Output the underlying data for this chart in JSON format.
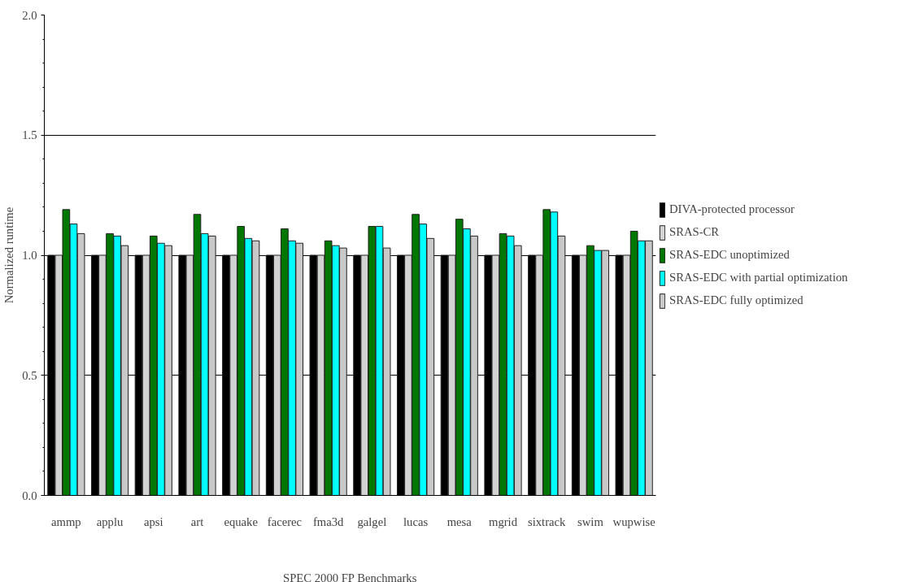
{
  "chart_data": {
    "type": "bar",
    "xlabel": "SPEC 2000 FP Benchmarks",
    "ylabel": "Normalized runtime",
    "categories": [
      "ammp",
      "applu",
      "apsi",
      "art",
      "equake",
      "facerec",
      "fma3d",
      "galgel",
      "lucas",
      "mesa",
      "mgrid",
      "sixtrack",
      "swim",
      "wupwise"
    ],
    "series": [
      {
        "name": "DIVA-protected processor",
        "color": "#000000",
        "values": [
          1,
          1,
          1,
          1,
          1,
          1,
          1,
          1,
          1,
          1,
          1,
          1,
          1,
          1
        ]
      },
      {
        "name": "SRAS-CR",
        "color": "#d3d3d3",
        "values": [
          1,
          1,
          1,
          1,
          1,
          1,
          1,
          1,
          1,
          1,
          1,
          1,
          1,
          1
        ]
      },
      {
        "name": "SRAS-EDC unoptimized",
        "color": "#007700",
        "values": [
          1.19,
          1.09,
          1.08,
          1.17,
          1.12,
          1.11,
          1.06,
          1.12,
          1.17,
          1.15,
          1.09,
          1.19,
          1.04,
          1.1
        ]
      },
      {
        "name": "SRAS-EDC with partial optimization",
        "color": "#00ffff",
        "values": [
          1.13,
          1.08,
          1.05,
          1.09,
          1.07,
          1.06,
          1.04,
          1.12,
          1.13,
          1.11,
          1.08,
          1.18,
          1.02,
          1.06
        ]
      },
      {
        "name": "SRAS-EDC fully optimized",
        "color": "#c8c8c8",
        "values": [
          1.09,
          1.04,
          1.04,
          1.08,
          1.06,
          1.05,
          1.03,
          1.03,
          1.07,
          1.08,
          1.04,
          1.08,
          1.02,
          1.06
        ]
      }
    ],
    "ylim": [
      0,
      2
    ],
    "yticks": [
      {
        "value": 0,
        "label": "0.0"
      },
      {
        "value": 0.5,
        "label": "0.5"
      },
      {
        "value": 1,
        "label": "1.0"
      },
      {
        "value": 1.5,
        "label": "1.5"
      },
      {
        "value": 2,
        "label": "2.0"
      }
    ],
    "grid": "y",
    "legend": "right"
  }
}
